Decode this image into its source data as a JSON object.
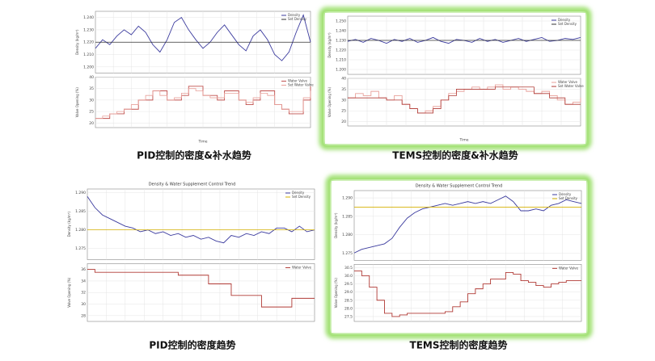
{
  "chart_data": [
    {
      "type": "line",
      "caption": "PID控制的密度&补水趋势",
      "highlight": false,
      "xlabel": "Time",
      "panels": [
        {
          "ylabel": "Density (kg/m³)",
          "ylim": [
            1.195,
            1.245
          ],
          "yticks": [
            {
              "value": 1.2,
              "label": "1.200"
            },
            {
              "value": 1.21,
              "label": "1.210"
            },
            {
              "value": 1.22,
              "label": "1.220"
            },
            {
              "value": 1.23,
              "label": "1.230"
            },
            {
              "value": 1.24,
              "label": "1.240"
            }
          ],
          "series": [
            {
              "name": "Density",
              "color": "#3b3b9e",
              "values": [
                1.215,
                1.222,
                1.218,
                1.225,
                1.23,
                1.226,
                1.233,
                1.228,
                1.218,
                1.212,
                1.222,
                1.236,
                1.24,
                1.23,
                1.222,
                1.215,
                1.22,
                1.228,
                1.234,
                1.226,
                1.218,
                1.213,
                1.225,
                1.23,
                1.222,
                1.21,
                1.205,
                1.212,
                1.228,
                1.242,
                1.22
              ]
            },
            {
              "name": "Set Density",
              "color": "#333333",
              "values": [
                1.22,
                1.22
              ]
            }
          ]
        },
        {
          "ylabel": "Valve Opening (%)",
          "ylim": [
            18,
            40
          ],
          "yticks": [
            20,
            25,
            30,
            35,
            40
          ],
          "series": [
            {
              "name": "Water Valve",
              "color": "#c0504d",
              "values": [
                22,
                22,
                24,
                24,
                26,
                26,
                30,
                30,
                34,
                34,
                30,
                30,
                32,
                36,
                36,
                32,
                32,
                30,
                34,
                34,
                30,
                28,
                30,
                34,
                34,
                28,
                26,
                24,
                24,
                30,
                36
              ]
            },
            {
              "name": "Set Water Valve",
              "color": "#e8a09a",
              "values": [
                22,
                23,
                24,
                25,
                26,
                28,
                30,
                32,
                34,
                32,
                30,
                31,
                33,
                35,
                34,
                32,
                31,
                31,
                33,
                33,
                30,
                29,
                31,
                33,
                32,
                28,
                26,
                25,
                25,
                31,
                34
              ]
            }
          ]
        }
      ]
    },
    {
      "type": "line",
      "caption": "TEMS控制的密度&补水趋势",
      "highlight": true,
      "xlabel": "Time",
      "panels": [
        {
          "ylabel": "Density (kg/m³)",
          "ylim": [
            1.195,
            1.255
          ],
          "yticks": [
            {
              "value": 1.2,
              "label": "1.200"
            },
            {
              "value": 1.21,
              "label": "1.210"
            },
            {
              "value": 1.22,
              "label": "1.220"
            },
            {
              "value": 1.23,
              "label": "1.230"
            },
            {
              "value": 1.24,
              "label": "1.240"
            },
            {
              "value": 1.25,
              "label": "1.250"
            }
          ],
          "series": [
            {
              "name": "Density",
              "color": "#3b3b9e",
              "values": [
                1.229,
                1.231,
                1.228,
                1.232,
                1.23,
                1.227,
                1.231,
                1.229,
                1.232,
                1.228,
                1.23,
                1.233,
                1.229,
                1.227,
                1.231,
                1.23,
                1.228,
                1.232,
                1.229,
                1.231,
                1.228,
                1.23,
                1.232,
                1.229,
                1.231,
                1.233,
                1.229,
                1.23,
                1.232,
                1.231,
                1.233
              ]
            },
            {
              "name": "Set Density",
              "color": "#333333",
              "values": [
                1.23,
                1.23
              ]
            }
          ]
        },
        {
          "ylabel": "Valve Opening (%)",
          "ylim": [
            18,
            40
          ],
          "yticks": [
            20,
            25,
            30,
            35,
            40
          ],
          "series": [
            {
              "name": "Water Valve",
              "color": "#e8a09a",
              "values": [
                31,
                33,
                32,
                34,
                31,
                30,
                32,
                28,
                26,
                24,
                25,
                27,
                30,
                33,
                34,
                35,
                36,
                35,
                36,
                37,
                35,
                36,
                35,
                34,
                33,
                34,
                32,
                30,
                28,
                29,
                31
              ]
            },
            {
              "name": "Set Water Valve",
              "color": "#b03a35",
              "values": [
                31,
                31,
                31,
                31,
                31,
                30,
                30,
                28,
                26,
                24,
                24,
                26,
                30,
                32,
                35,
                35,
                35,
                35,
                35,
                36,
                36,
                36,
                36,
                36,
                33,
                33,
                31,
                31,
                28,
                28,
                28
              ]
            }
          ]
        }
      ]
    },
    {
      "type": "line",
      "caption": "PID控制的密度趋势",
      "highlight": false,
      "title": "Density & Water Supplement Control Trend",
      "panels": [
        {
          "ylabel": "Density (kg/m³)",
          "ylim": [
            1.272,
            1.291
          ],
          "yticks": [
            {
              "value": 1.275,
              "label": "1.275"
            },
            {
              "value": 1.28,
              "label": "1.280"
            },
            {
              "value": 1.285,
              "label": "1.285"
            },
            {
              "value": 1.29,
              "label": "1.290"
            }
          ],
          "series": [
            {
              "name": "Density",
              "color": "#3b3b9e",
              "values": [
                1.289,
                1.286,
                1.284,
                1.283,
                1.282,
                1.281,
                1.2805,
                1.2795,
                1.28,
                1.279,
                1.2795,
                1.2785,
                1.279,
                1.278,
                1.2785,
                1.2775,
                1.278,
                1.277,
                1.2765,
                1.2785,
                1.278,
                1.279,
                1.2785,
                1.2795,
                1.279,
                1.2805,
                1.2805,
                1.2795,
                1.281,
                1.2795,
                1.28
              ]
            },
            {
              "name": "Set Density",
              "color": "#d4b000",
              "values": [
                1.28,
                1.28
              ]
            }
          ]
        },
        {
          "ylabel": "Valve Opening (%)",
          "ylim": [
            27,
            37
          ],
          "yticks": [
            28,
            30,
            32,
            34,
            36
          ],
          "series": [
            {
              "name": "Water Valve",
              "color": "#b03a35",
              "values": [
                36,
                35.5,
                35.5,
                35.5,
                35.5,
                35.5,
                35.5,
                35.5,
                35.5,
                35.5,
                35.5,
                35.5,
                35,
                35,
                35,
                35,
                33.5,
                33.5,
                33.5,
                31.5,
                31.5,
                31.5,
                31.5,
                29.5,
                29.5,
                29.5,
                29.5,
                31,
                31,
                31,
                31
              ]
            }
          ]
        }
      ]
    },
    {
      "type": "line",
      "caption": "TEMS控制的密度趋势",
      "highlight": true,
      "title": "Density & Water Supplement Control Trend",
      "panels": [
        {
          "ylabel": "Density (kg/m³)",
          "ylim": [
            1.273,
            1.292
          ],
          "yticks": [
            {
              "value": 1.275,
              "label": "1.275"
            },
            {
              "value": 1.28,
              "label": "1.280"
            },
            {
              "value": 1.285,
              "label": "1.285"
            },
            {
              "value": 1.29,
              "label": "1.290"
            }
          ],
          "series": [
            {
              "name": "Density",
              "color": "#3b3b9e",
              "values": [
                1.275,
                1.276,
                1.2765,
                1.277,
                1.2775,
                1.279,
                1.282,
                1.2845,
                1.286,
                1.287,
                1.2875,
                1.288,
                1.2885,
                1.288,
                1.2885,
                1.289,
                1.2885,
                1.289,
                1.2885,
                1.2895,
                1.2905,
                1.289,
                1.2865,
                1.2865,
                1.287,
                1.2865,
                1.288,
                1.2885,
                1.2895,
                1.289,
                1.2885
              ]
            },
            {
              "name": "Set Density",
              "color": "#d4b000",
              "values": [
                1.2875,
                1.2875
              ]
            }
          ]
        },
        {
          "ylabel": "Valve Opening (%)",
          "ylim": [
            27.2,
            30.7
          ],
          "yticks": [
            {
              "value": 27.5,
              "label": "27.5"
            },
            {
              "value": 28,
              "label": "28.0"
            },
            {
              "value": 28.5,
              "label": "28.5"
            },
            {
              "value": 29,
              "label": "29.0"
            },
            {
              "value": 29.5,
              "label": "29.5"
            },
            {
              "value": 30,
              "label": "30.0"
            },
            {
              "value": 30.5,
              "label": "30.5"
            }
          ],
          "series": [
            {
              "name": "Water Valve",
              "color": "#b03a35",
              "values": [
                30.3,
                30.0,
                29.3,
                28.5,
                27.7,
                27.5,
                27.6,
                27.7,
                27.7,
                27.7,
                27.7,
                27.7,
                27.8,
                28.1,
                28.4,
                28.9,
                29.2,
                29.5,
                29.8,
                29.8,
                30.2,
                30.1,
                29.7,
                29.6,
                29.4,
                29.3,
                29.5,
                29.6,
                29.7,
                29.7,
                29.7
              ]
            }
          ]
        }
      ]
    }
  ]
}
